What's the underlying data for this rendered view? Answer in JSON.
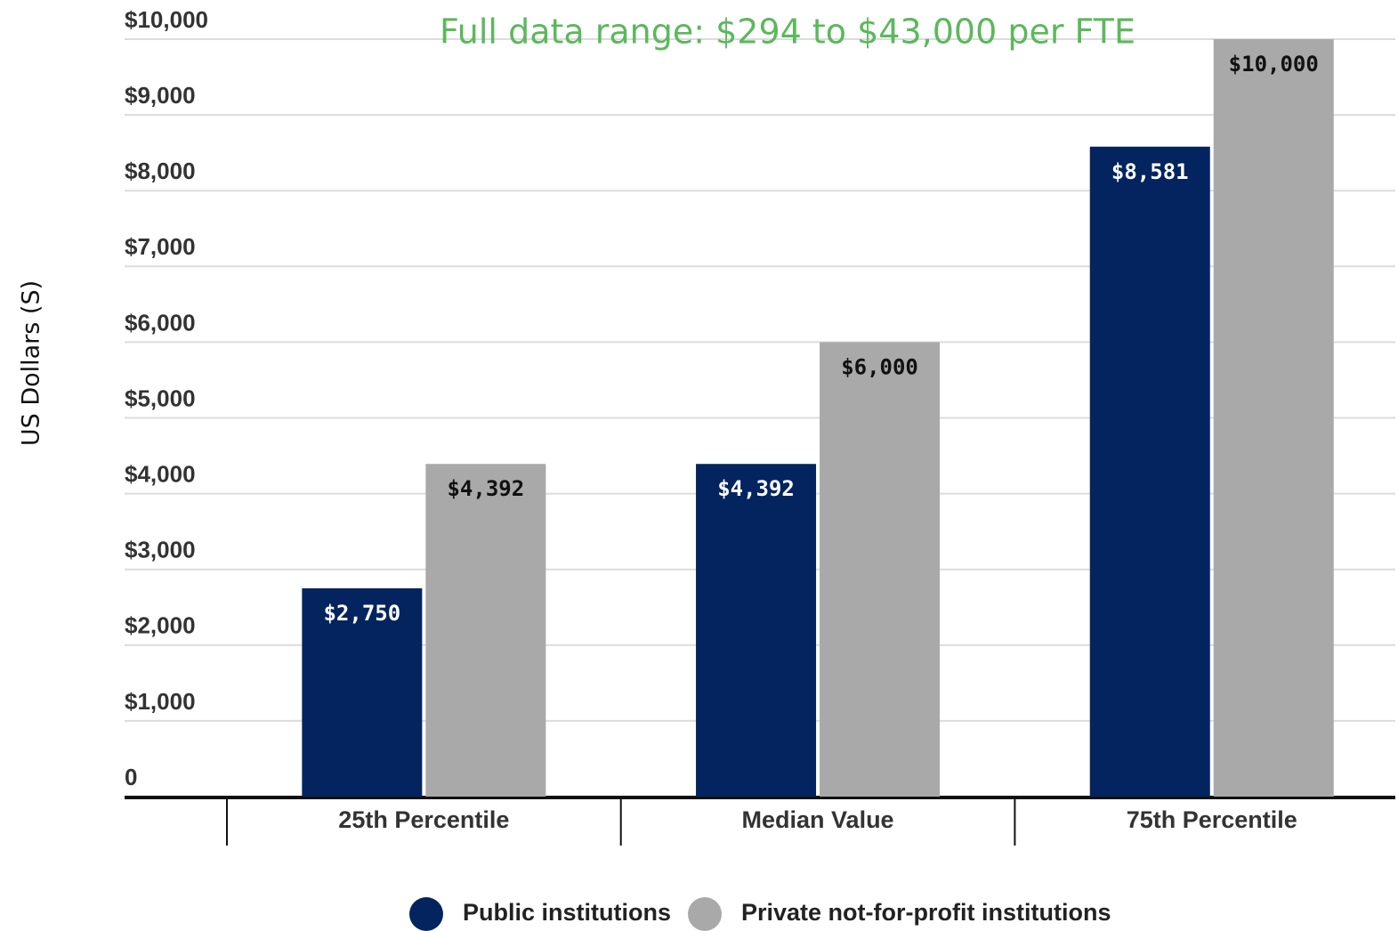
{
  "chart_data": {
    "type": "bar",
    "annotation": "Full data range: $294 to $43,000 per FTE",
    "y_label": "US Dollars (S)",
    "categories": [
      "25th Percentile",
      "Median Value",
      "75th Percentile"
    ],
    "series": [
      {
        "name": "Public institutions",
        "color": "#03245f",
        "values": [
          2750,
          4392,
          8581
        ],
        "value_labels": [
          "$2,750",
          "$4,392",
          "$8,581"
        ]
      },
      {
        "name": "Private not-for-profit institutions",
        "color": "#a9a9a9",
        "values": [
          4392,
          6000,
          10000
        ],
        "value_labels": [
          "$4,392",
          "$6,000",
          "$10,000"
        ]
      }
    ],
    "ylim": [
      0,
      10000
    ],
    "yticks": [
      0,
      {
        "value": 1000,
        "label": "$1,000"
      },
      {
        "value": 2000,
        "label": "$2,000"
      },
      {
        "value": 3000,
        "label": "$3,000"
      },
      {
        "value": 4000,
        "label": "$4,000"
      },
      {
        "value": 5000,
        "label": "$5,000"
      },
      {
        "value": 6000,
        "label": "$6,000"
      },
      {
        "value": 7000,
        "label": "$7,000"
      },
      {
        "value": 8000,
        "label": "$8,000"
      },
      {
        "value": 9000,
        "label": "$9,000"
      },
      {
        "value": 10000,
        "label": "$10,000"
      }
    ],
    "grid": true,
    "legend": "bottom"
  }
}
